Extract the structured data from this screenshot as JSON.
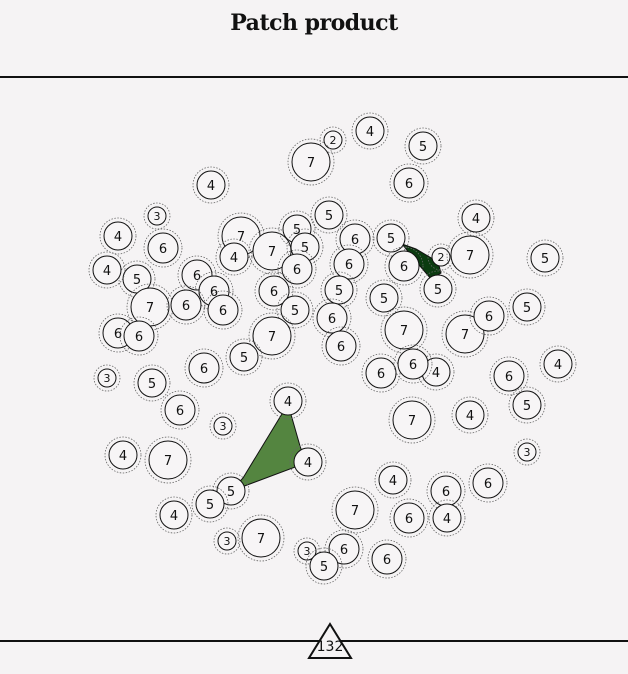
{
  "title": "Patch product",
  "footer_badge": "132",
  "colors": {
    "background": "#f5f3f4",
    "patch_light": "#548540",
    "patch_dark": "#0b3b10",
    "stroke": "#111111"
  },
  "nodes": [
    {
      "id": 0,
      "label": "2"
    },
    {
      "id": 1,
      "label": "4"
    },
    {
      "id": 2,
      "label": "7"
    },
    {
      "id": 3,
      "label": "5"
    },
    {
      "id": 4,
      "label": "4"
    },
    {
      "id": 5,
      "label": "6"
    },
    {
      "id": 6,
      "label": "3"
    },
    {
      "id": 7,
      "label": "5"
    },
    {
      "id": 8,
      "label": "4"
    },
    {
      "id": 9,
      "label": "6"
    },
    {
      "id": 10,
      "label": "7"
    },
    {
      "id": 11,
      "label": "7"
    },
    {
      "id": 12,
      "label": "5"
    },
    {
      "id": 13,
      "label": "5"
    },
    {
      "id": 14,
      "label": "6"
    },
    {
      "id": 15,
      "label": "5"
    },
    {
      "id": 16,
      "label": "2"
    },
    {
      "id": 17,
      "label": "7"
    },
    {
      "id": 18,
      "label": "4"
    },
    {
      "id": 19,
      "label": "4"
    },
    {
      "id": 20,
      "label": "5"
    },
    {
      "id": 21,
      "label": "4"
    },
    {
      "id": 22,
      "label": "6"
    },
    {
      "id": 23,
      "label": "6"
    },
    {
      "id": 24,
      "label": "6"
    },
    {
      "id": 25,
      "label": "6"
    },
    {
      "id": 26,
      "label": "5"
    },
    {
      "id": 27,
      "label": "7"
    },
    {
      "id": 28,
      "label": "6"
    },
    {
      "id": 29,
      "label": "6"
    },
    {
      "id": 30,
      "label": "5"
    },
    {
      "id": 31,
      "label": "6"
    },
    {
      "id": 32,
      "label": "6"
    },
    {
      "id": 33,
      "label": "6"
    },
    {
      "id": 34,
      "label": "5"
    },
    {
      "id": 35,
      "label": "5"
    },
    {
      "id": 36,
      "label": "5"
    },
    {
      "id": 37,
      "label": "7"
    },
    {
      "id": 38,
      "label": "7"
    },
    {
      "id": 39,
      "label": "6"
    },
    {
      "id": 40,
      "label": "5"
    },
    {
      "id": 41,
      "label": "7"
    },
    {
      "id": 42,
      "label": "6"
    },
    {
      "id": 43,
      "label": "6"
    },
    {
      "id": 44,
      "label": "3"
    },
    {
      "id": 45,
      "label": "5"
    },
    {
      "id": 46,
      "label": "6"
    },
    {
      "id": 47,
      "label": "6"
    },
    {
      "id": 48,
      "label": "6"
    },
    {
      "id": 49,
      "label": "4"
    },
    {
      "id": 50,
      "label": "6"
    },
    {
      "id": 51,
      "label": "4"
    },
    {
      "id": 52,
      "label": "6"
    },
    {
      "id": 53,
      "label": "5"
    },
    {
      "id": 54,
      "label": "4"
    },
    {
      "id": 55,
      "label": "5"
    },
    {
      "id": 56,
      "label": "7"
    },
    {
      "id": 57,
      "label": "6"
    },
    {
      "id": 58,
      "label": "4"
    },
    {
      "id": 59,
      "label": "7"
    },
    {
      "id": 60,
      "label": "4"
    },
    {
      "id": 61,
      "label": "5"
    },
    {
      "id": 62,
      "label": "3"
    },
    {
      "id": 63,
      "label": "4"
    },
    {
      "id": 64,
      "label": "5"
    },
    {
      "id": 65,
      "label": "7"
    },
    {
      "id": 66,
      "label": "6"
    },
    {
      "id": 67,
      "label": "6"
    },
    {
      "id": 68,
      "label": "3"
    },
    {
      "id": 69,
      "label": "7"
    },
    {
      "id": 70,
      "label": "3"
    },
    {
      "id": 71,
      "label": "6"
    },
    {
      "id": 72,
      "label": "3"
    },
    {
      "id": 73,
      "label": "4"
    },
    {
      "id": 74,
      "label": "4"
    },
    {
      "id": 75,
      "label": "6"
    },
    {
      "id": 76,
      "label": "4"
    },
    {
      "id": 77,
      "label": "6"
    },
    {
      "id": 78,
      "label": "5"
    },
    {
      "id": 79,
      "label": "6"
    },
    {
      "id": 80,
      "label": "5"
    },
    {
      "id": 81,
      "label": "6"
    }
  ],
  "patches": [
    {
      "name": "light-patch",
      "color": "#548540",
      "nodes": [
        60,
        76,
        61
      ]
    },
    {
      "name": "dark-patch",
      "color": "#0b3b10",
      "nodes": [
        15,
        16,
        26
      ]
    }
  ]
}
